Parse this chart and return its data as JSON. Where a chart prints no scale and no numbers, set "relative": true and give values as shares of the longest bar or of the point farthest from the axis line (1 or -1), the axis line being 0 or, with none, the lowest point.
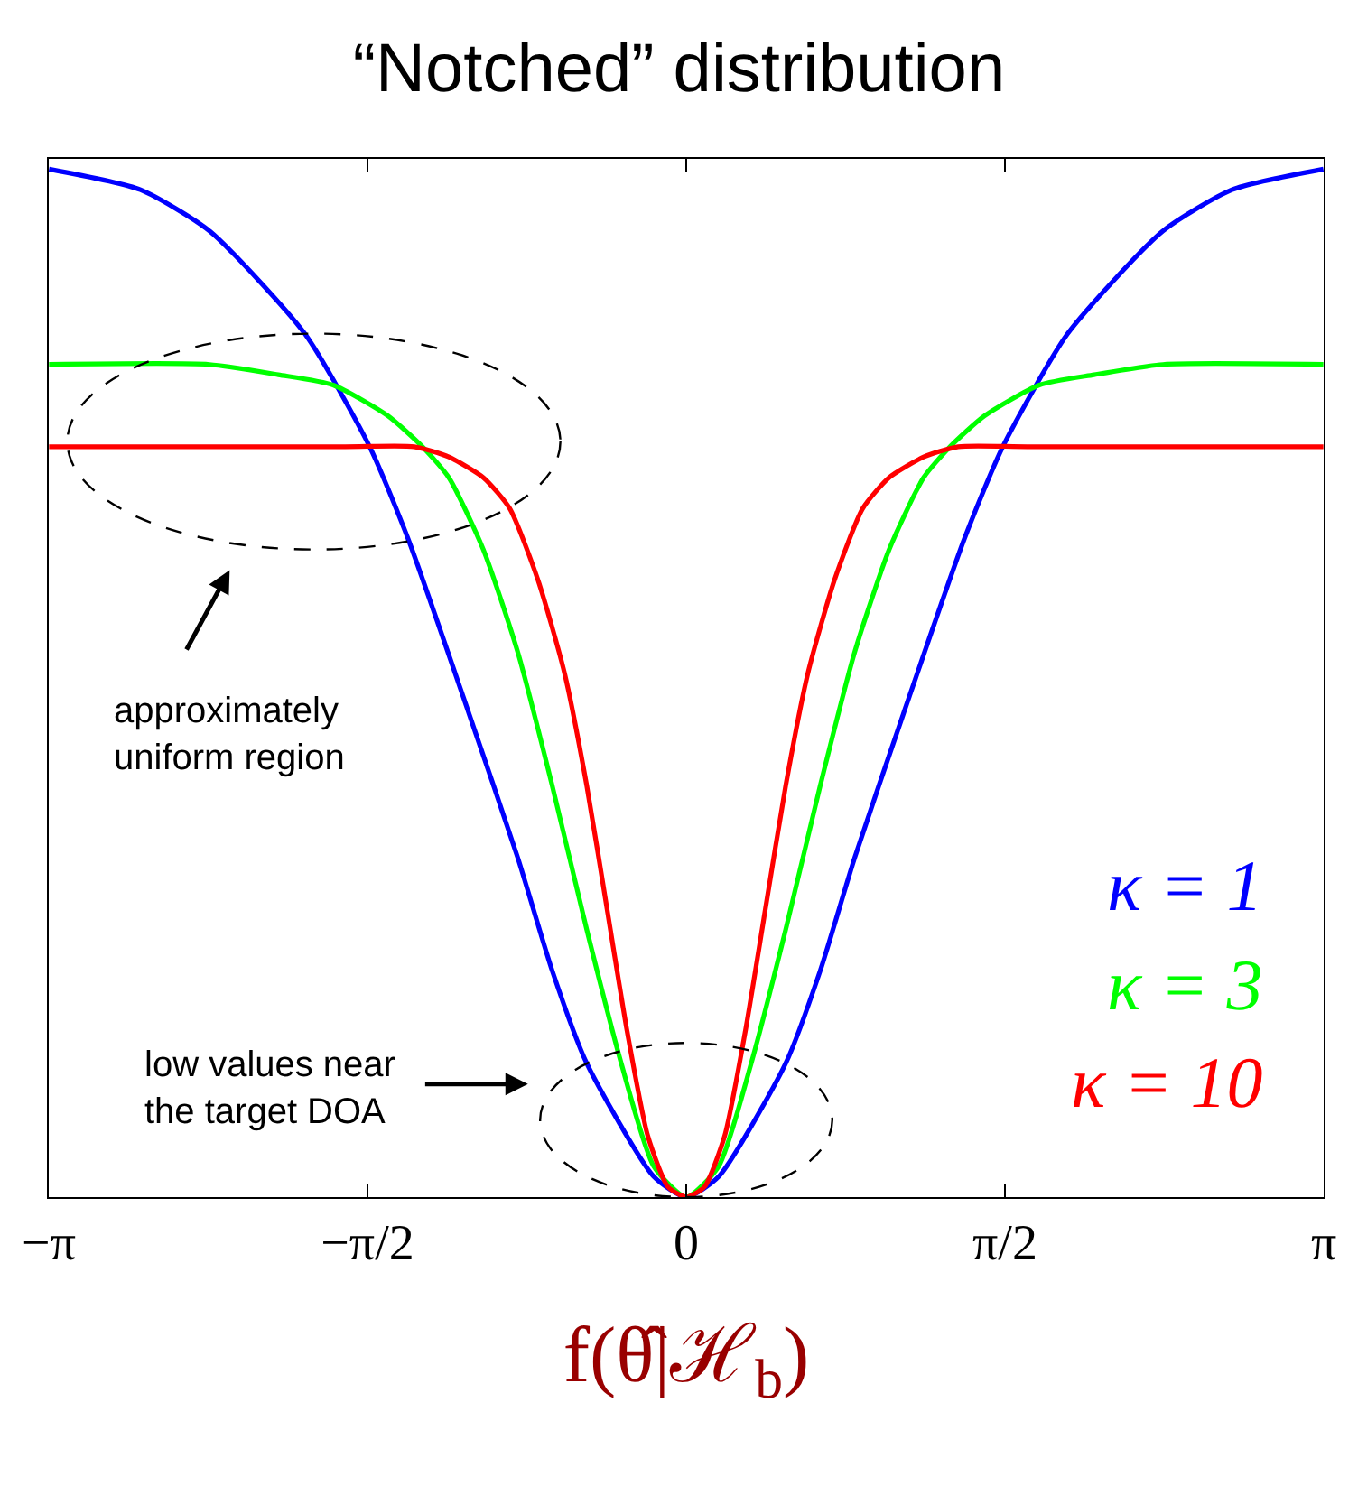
{
  "chart_data": {
    "type": "line",
    "title": "“Notched” distribution",
    "xlabel": "f(θ̂|ℋ$_{b}$)",
    "relative": true,
    "xlim": [
      -3.1416,
      3.1416
    ],
    "xticks": [
      {
        "value": -3.1416,
        "label": "−π"
      },
      {
        "value": -1.5708,
        "label": "−π/2"
      },
      0,
      {
        "value": 1.5708,
        "label": "π/2"
      },
      {
        "value": 3.1416,
        "label": "π"
      }
    ],
    "legend": "bottom right",
    "series": [
      {
        "name": "κ = 1",
        "color": "#0000ff",
        "x": [
          -3.14,
          -2.69,
          -2.35,
          -1.88,
          -1.56,
          -1.37,
          -1.07,
          -0.83,
          -0.66,
          -0.49,
          -0.16,
          0,
          0.16,
          0.49,
          0.66,
          0.83,
          1.07,
          1.37,
          1.56,
          1.88,
          2.35,
          2.69,
          3.14
        ],
        "values": [
          1.0,
          0.98,
          0.94,
          0.84,
          0.73,
          0.64,
          0.47,
          0.33,
          0.22,
          0.13,
          0.02,
          0,
          0.02,
          0.13,
          0.22,
          0.33,
          0.47,
          0.64,
          0.73,
          0.84,
          0.94,
          0.98,
          1.0
        ]
      },
      {
        "name": "κ = 3",
        "color": "#00ff00",
        "x": [
          -3.14,
          -2.35,
          -2.01,
          -1.74,
          -1.47,
          -1.3,
          -1.17,
          -1.0,
          -0.83,
          -0.66,
          -0.49,
          -0.32,
          -0.16,
          0,
          0.16,
          0.32,
          0.49,
          0.66,
          0.83,
          1.0,
          1.17,
          1.3,
          1.47,
          1.74,
          2.01,
          2.35,
          3.14
        ],
        "values": [
          0.81,
          0.81,
          0.8,
          0.79,
          0.76,
          0.73,
          0.7,
          0.63,
          0.53,
          0.4,
          0.26,
          0.13,
          0.03,
          0,
          0.03,
          0.13,
          0.26,
          0.4,
          0.53,
          0.63,
          0.7,
          0.73,
          0.76,
          0.79,
          0.8,
          0.81,
          0.81
        ]
      },
      {
        "name": "κ = 10",
        "color": "#ff0000",
        "x": [
          -3.14,
          -1.68,
          -1.34,
          -1.17,
          -1.0,
          -0.87,
          -0.73,
          -0.6,
          -0.49,
          -0.39,
          -0.29,
          -0.19,
          -0.09,
          0,
          0.09,
          0.19,
          0.29,
          0.39,
          0.49,
          0.6,
          0.73,
          0.87,
          1.0,
          1.17,
          1.34,
          1.68,
          3.14
        ],
        "values": [
          0.73,
          0.73,
          0.73,
          0.72,
          0.7,
          0.67,
          0.6,
          0.51,
          0.4,
          0.28,
          0.16,
          0.06,
          0.01,
          0,
          0.01,
          0.06,
          0.16,
          0.28,
          0.4,
          0.51,
          0.6,
          0.67,
          0.7,
          0.72,
          0.73,
          0.73,
          0.73
        ]
      }
    ],
    "annotations": [
      "approximately\nuniform region",
      "low values near\nthe target DOA"
    ]
  }
}
